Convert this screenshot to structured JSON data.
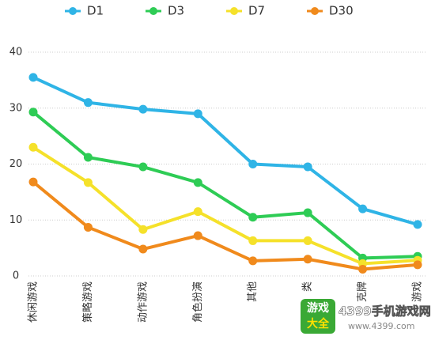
{
  "chart_data": {
    "type": "line",
    "categories": [
      "休闲游戏",
      "策略游戏",
      "动作游戏",
      "角色扮演",
      "其他",
      "类",
      "克牌",
      "游戏"
    ],
    "series": [
      {
        "name": "D1",
        "color": "#2fb4e6",
        "values": [
          35.5,
          31,
          29.8,
          29,
          20,
          19.5,
          12,
          9.2
        ]
      },
      {
        "name": "D3",
        "color": "#2ecc55",
        "values": [
          29.3,
          21.2,
          19.5,
          16.7,
          10.5,
          11.3,
          3.2,
          3.5
        ]
      },
      {
        "name": "D7",
        "color": "#f5e12a",
        "values": [
          23,
          16.7,
          8.3,
          11.5,
          6.3,
          6.3,
          2.2,
          2.8
        ]
      },
      {
        "name": "D30",
        "color": "#f08a1c",
        "values": [
          16.8,
          8.7,
          4.8,
          7.2,
          2.7,
          3,
          1.2,
          2
        ]
      }
    ],
    "ylim": [
      0,
      40
    ],
    "yticks": [
      0,
      10,
      20,
      30,
      40
    ],
    "grid": true
  },
  "watermark": {
    "badge_top": "游戏",
    "badge_bottom": "大全",
    "site": "4399手机游戏网",
    "url": "www.4399.com"
  }
}
